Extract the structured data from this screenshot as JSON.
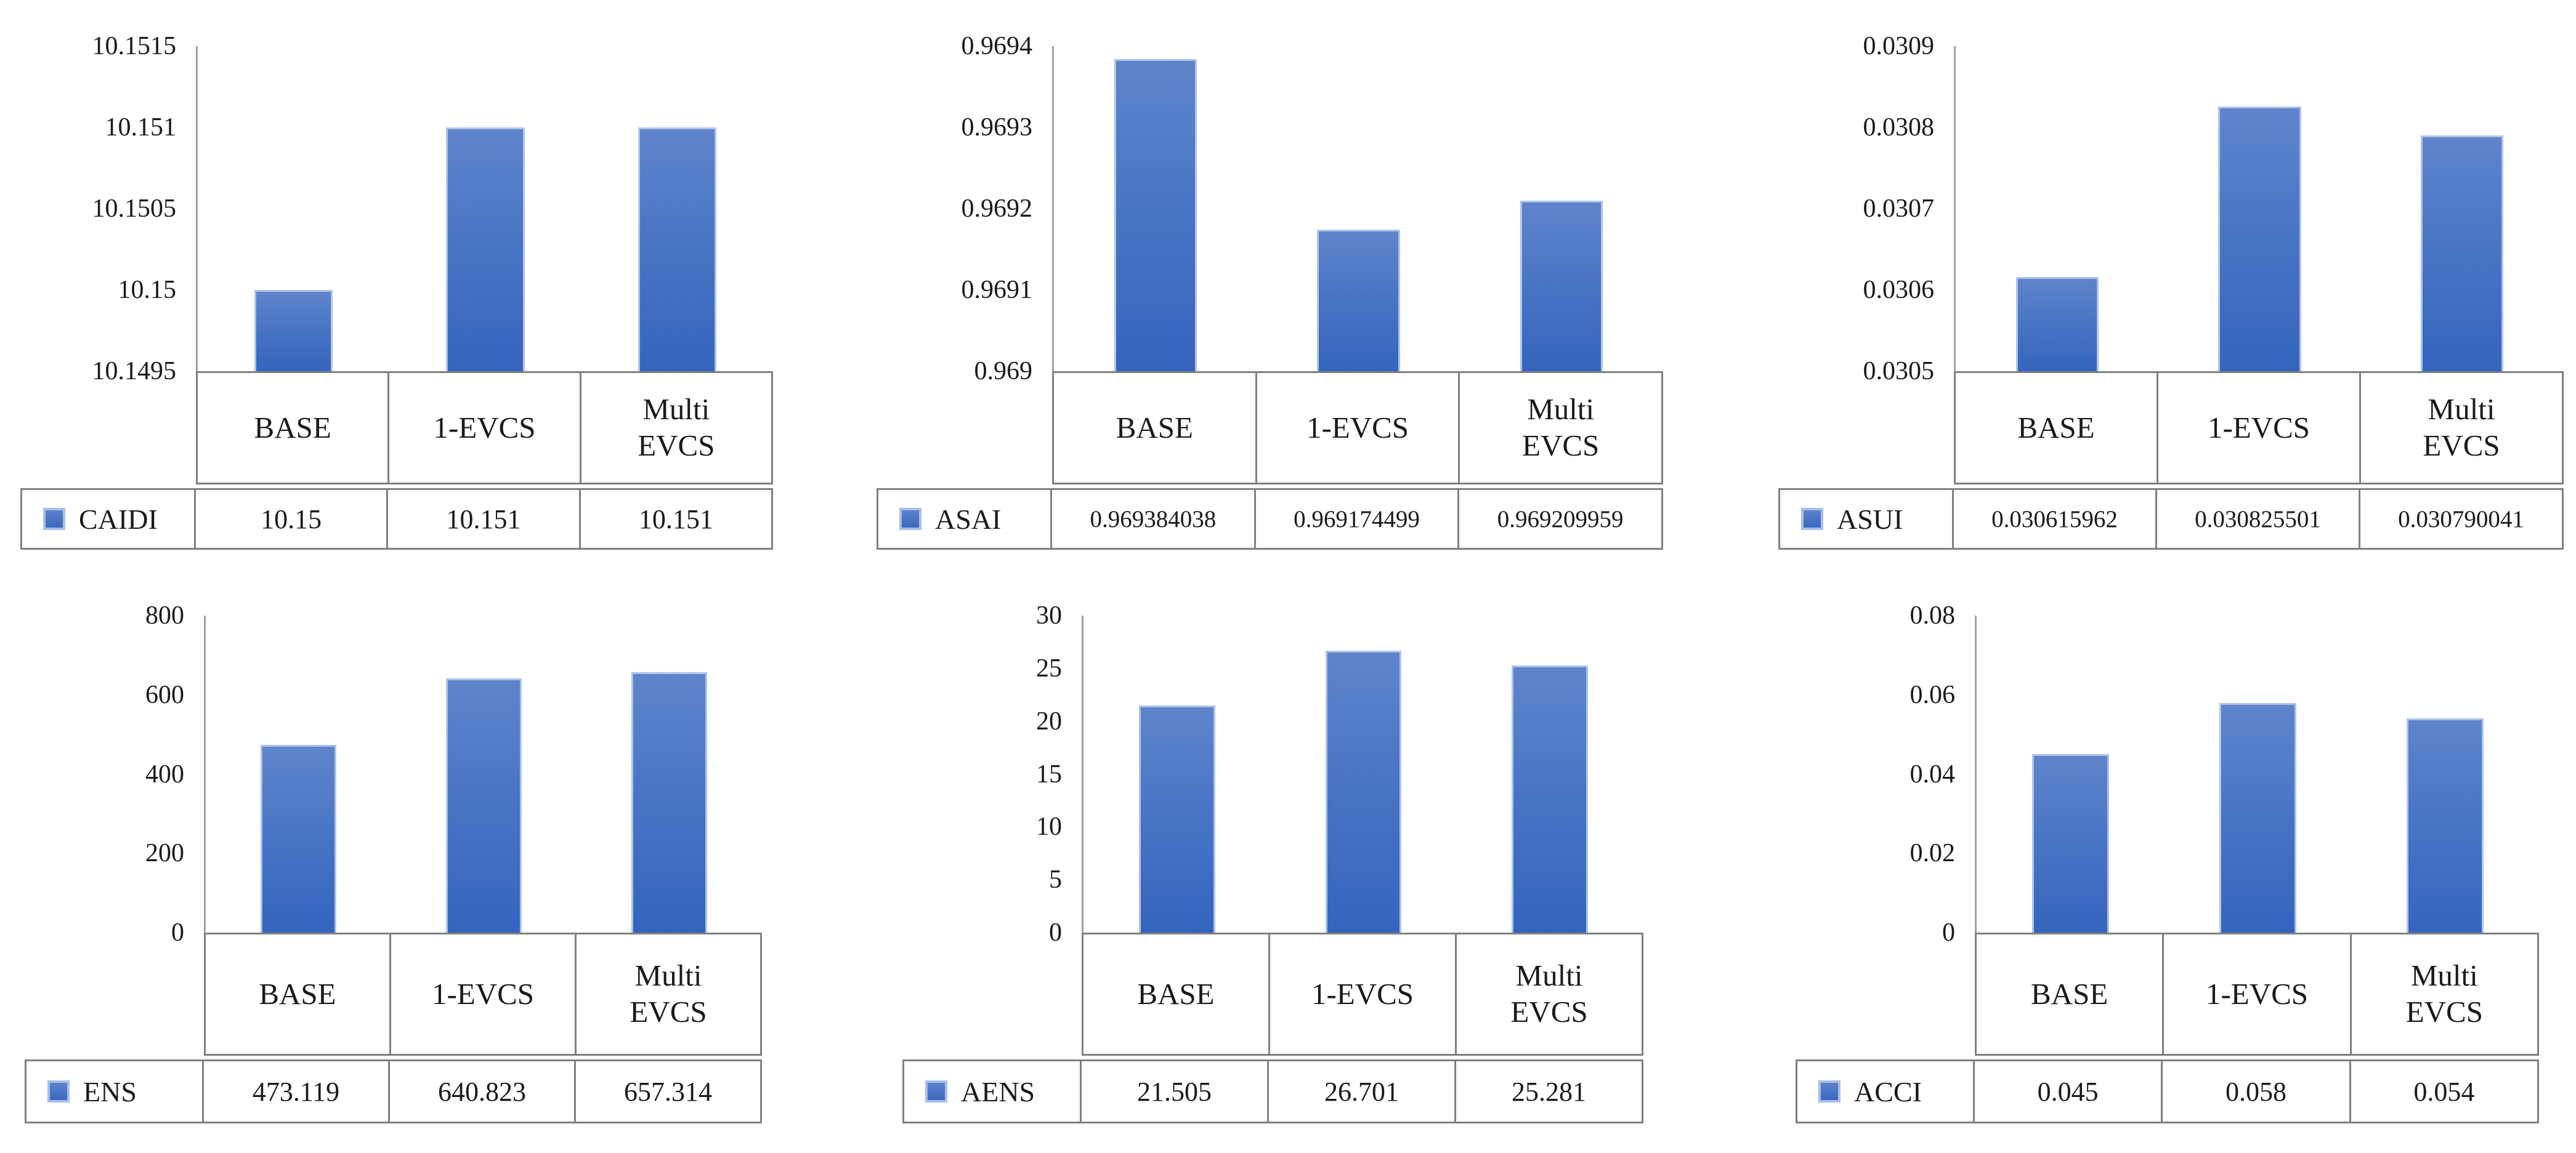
{
  "colors": {
    "bar_fill_top": "#5f84cb",
    "bar_fill_bottom": "#3465bd",
    "bar_border": "#aec4e9",
    "table_border": "#808080",
    "axis_line": "#a2a2a2",
    "text": "#1a1a1a",
    "background": "#ffffff"
  },
  "icons": {
    "legend_key": "blue-square-swatch"
  },
  "chart_data": [
    {
      "type": "bar",
      "series": "CAIDI",
      "categories": [
        "BASE",
        "1-EVCS",
        "Multi EVCS"
      ],
      "values": [
        10.15,
        10.151,
        10.151
      ],
      "display_values": [
        "10.15",
        "10.151",
        "10.151"
      ],
      "y_ticks": [
        "10.1515",
        "10.151",
        "10.1505",
        "10.15",
        "10.1495"
      ],
      "ylim": [
        10.1495,
        10.1515
      ],
      "grid": false,
      "legend_position": "table-left"
    },
    {
      "type": "bar",
      "series": "ASAI",
      "categories": [
        "BASE",
        "1-EVCS",
        "Multi EVCS"
      ],
      "values": [
        0.969384038,
        0.969174499,
        0.969209959
      ],
      "display_values": [
        "0.969384038",
        "0.969174499",
        "0.969209959"
      ],
      "y_ticks": [
        "0.9694",
        "0.9693",
        "0.9692",
        "0.9691",
        "0.969"
      ],
      "ylim": [
        0.969,
        0.9694
      ],
      "grid": false,
      "legend_position": "table-left"
    },
    {
      "type": "bar",
      "series": "ASUI",
      "categories": [
        "BASE",
        "1-EVCS",
        "Multi EVCS"
      ],
      "values": [
        0.030615962,
        0.030825501,
        0.030790041
      ],
      "display_values": [
        "0.030615962",
        "0.030825501",
        "0.030790041"
      ],
      "y_ticks": [
        "0.0309",
        "0.0308",
        "0.0307",
        "0.0306",
        "0.0305"
      ],
      "ylim": [
        0.0305,
        0.0309
      ],
      "grid": false,
      "legend_position": "table-left"
    },
    {
      "type": "bar",
      "series": "ENS",
      "categories": [
        "BASE",
        "1-EVCS",
        "Multi EVCS"
      ],
      "values": [
        473.119,
        640.823,
        657.314
      ],
      "display_values": [
        "473.119",
        "640.823",
        "657.314"
      ],
      "y_ticks": [
        "800",
        "600",
        "400",
        "200",
        "0"
      ],
      "ylim": [
        0,
        800
      ],
      "grid": false,
      "legend_position": "table-left"
    },
    {
      "type": "bar",
      "series": "AENS",
      "categories": [
        "BASE",
        "1-EVCS",
        "Multi EVCS"
      ],
      "values": [
        21.505,
        26.701,
        25.281
      ],
      "display_values": [
        "21.505",
        "26.701",
        "25.281"
      ],
      "y_ticks": [
        "30",
        "25",
        "20",
        "15",
        "10",
        "5",
        "0"
      ],
      "ylim": [
        0,
        30
      ],
      "grid": false,
      "legend_position": "table-left"
    },
    {
      "type": "bar",
      "series": "ACCI",
      "categories": [
        "BASE",
        "1-EVCS",
        "Multi EVCS"
      ],
      "values": [
        0.045,
        0.058,
        0.054
      ],
      "display_values": [
        "0.045",
        "0.058",
        "0.054"
      ],
      "y_ticks": [
        "0.08",
        "0.06",
        "0.04",
        "0.02",
        "0"
      ],
      "ylim": [
        0,
        0.08
      ],
      "grid": false,
      "legend_position": "table-left"
    }
  ]
}
